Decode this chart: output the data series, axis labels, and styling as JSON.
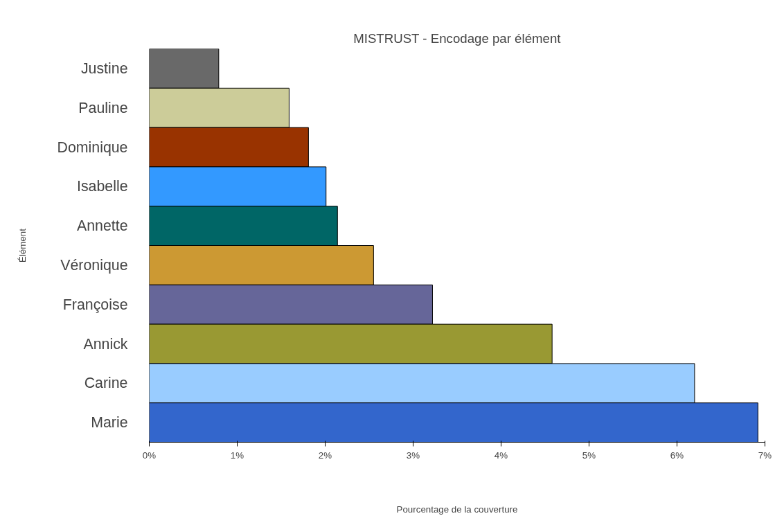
{
  "chart_data": {
    "type": "bar",
    "orientation": "horizontal",
    "title": "MISTRUST - Encodage par élément",
    "xlabel": "Pourcentage de la couverture",
    "ylabel": "Élément",
    "categories": [
      "Justine",
      "Pauline",
      "Dominique",
      "Isabelle",
      "Annette",
      "Véronique",
      "Françoise",
      "Annick",
      "Carine",
      "Marie"
    ],
    "values": [
      0.79,
      1.59,
      1.81,
      2.01,
      2.14,
      2.55,
      3.22,
      4.58,
      6.2,
      6.92
    ],
    "colors": [
      "#696969",
      "#cccc99",
      "#993300",
      "#3399ff",
      "#006666",
      "#cc9933",
      "#666699",
      "#999933",
      "#99ccff",
      "#3366cc"
    ],
    "xlim": [
      0,
      7
    ],
    "xticks": [
      {
        "value": 0,
        "label": "0%"
      },
      {
        "value": 1,
        "label": "1%"
      },
      {
        "value": 2,
        "label": "2%"
      },
      {
        "value": 3,
        "label": "3%"
      },
      {
        "value": 4,
        "label": "4%"
      },
      {
        "value": 5,
        "label": "5%"
      },
      {
        "value": 6,
        "label": "6%"
      },
      {
        "value": 7,
        "label": "7%"
      }
    ],
    "grid": false
  }
}
